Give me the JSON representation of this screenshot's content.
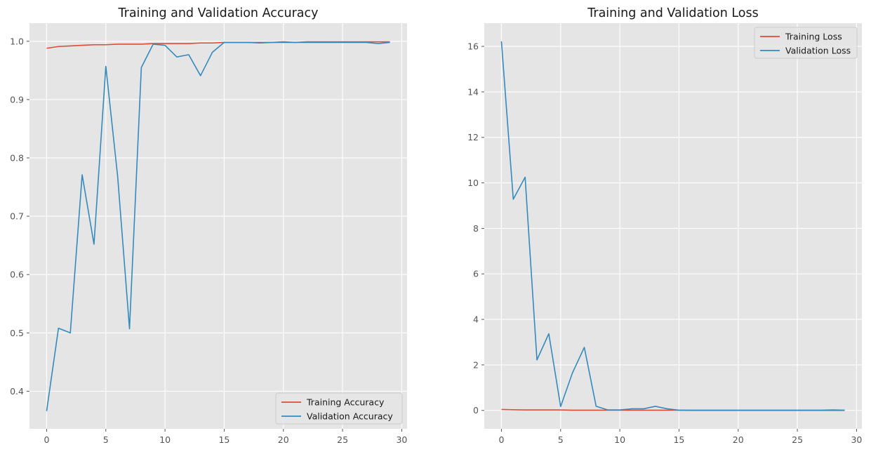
{
  "chart_data": [
    {
      "type": "line",
      "title": "Training and Validation Accuracy",
      "xlabel": "",
      "ylabel": "",
      "xlim": [
        -1.45,
        30.45
      ],
      "ylim": [
        0.3355,
        1.031
      ],
      "xticks": [
        0,
        5,
        10,
        15,
        20,
        25,
        30
      ],
      "yticks": [
        0.4,
        0.5,
        0.6,
        0.7,
        0.8,
        0.9,
        1.0
      ],
      "ytick_labels": [
        "0.4",
        "0.5",
        "0.6",
        "0.7",
        "0.8",
        "0.9",
        "1.0"
      ],
      "grid": true,
      "legend_position": "lower-right",
      "x": [
        0,
        1,
        2,
        3,
        4,
        5,
        6,
        7,
        8,
        9,
        10,
        11,
        12,
        13,
        14,
        15,
        16,
        17,
        18,
        19,
        20,
        21,
        22,
        23,
        24,
        25,
        26,
        27,
        28,
        29
      ],
      "series": [
        {
          "name": "Training Accuracy",
          "color": "#e24a33",
          "values": [
            0.988,
            0.991,
            0.992,
            0.993,
            0.994,
            0.994,
            0.995,
            0.995,
            0.995,
            0.996,
            0.996,
            0.996,
            0.996,
            0.997,
            0.997,
            0.998,
            0.998,
            0.998,
            0.998,
            0.998,
            0.999,
            0.998,
            0.999,
            0.999,
            0.999,
            0.999,
            0.999,
            0.999,
            0.999,
            0.999
          ]
        },
        {
          "name": "Validation Accuracy",
          "color": "#348abd",
          "values": [
            0.366,
            0.508,
            0.5,
            0.771,
            0.652,
            0.957,
            0.768,
            0.507,
            0.955,
            0.995,
            0.993,
            0.973,
            0.977,
            0.941,
            0.981,
            0.998,
            0.998,
            0.998,
            0.997,
            0.998,
            0.998,
            0.998,
            0.998,
            0.998,
            0.998,
            0.998,
            0.998,
            0.998,
            0.996,
            0.998
          ]
        }
      ]
    },
    {
      "type": "line",
      "title": "Training and Validation Loss",
      "xlabel": "",
      "ylabel": "",
      "xlim": [
        -1.45,
        30.45
      ],
      "ylim": [
        -0.81,
        17.02
      ],
      "xticks": [
        0,
        5,
        10,
        15,
        20,
        25,
        30
      ],
      "yticks": [
        0,
        2,
        4,
        6,
        8,
        10,
        12,
        14,
        16
      ],
      "ytick_labels": [
        "0",
        "2",
        "4",
        "6",
        "8",
        "10",
        "12",
        "14",
        "16"
      ],
      "grid": true,
      "legend_position": "upper-right",
      "x": [
        0,
        1,
        2,
        3,
        4,
        5,
        6,
        7,
        8,
        9,
        10,
        11,
        12,
        13,
        14,
        15,
        16,
        17,
        18,
        19,
        20,
        21,
        22,
        23,
        24,
        25,
        26,
        27,
        28,
        29
      ],
      "series": [
        {
          "name": "Training Loss",
          "color": "#e24a33",
          "values": [
            0.04,
            0.03,
            0.02,
            0.02,
            0.02,
            0.02,
            0.01,
            0.01,
            0.01,
            0.01,
            0.01,
            0.01,
            0.01,
            0.01,
            0.01,
            0.01,
            0.0,
            0.0,
            0.0,
            0.0,
            0.0,
            0.0,
            0.0,
            0.0,
            0.0,
            0.0,
            0.0,
            0.0,
            0.0,
            0.0
          ]
        },
        {
          "name": "Validation Loss",
          "color": "#348abd",
          "values": [
            16.22,
            9.28,
            10.25,
            2.22,
            3.37,
            0.17,
            1.65,
            2.77,
            0.18,
            0.02,
            0.02,
            0.07,
            0.07,
            0.18,
            0.07,
            0.01,
            0.01,
            0.01,
            0.01,
            0.01,
            0.01,
            0.01,
            0.01,
            0.01,
            0.01,
            0.01,
            0.01,
            0.01,
            0.02,
            0.01
          ]
        }
      ]
    }
  ]
}
